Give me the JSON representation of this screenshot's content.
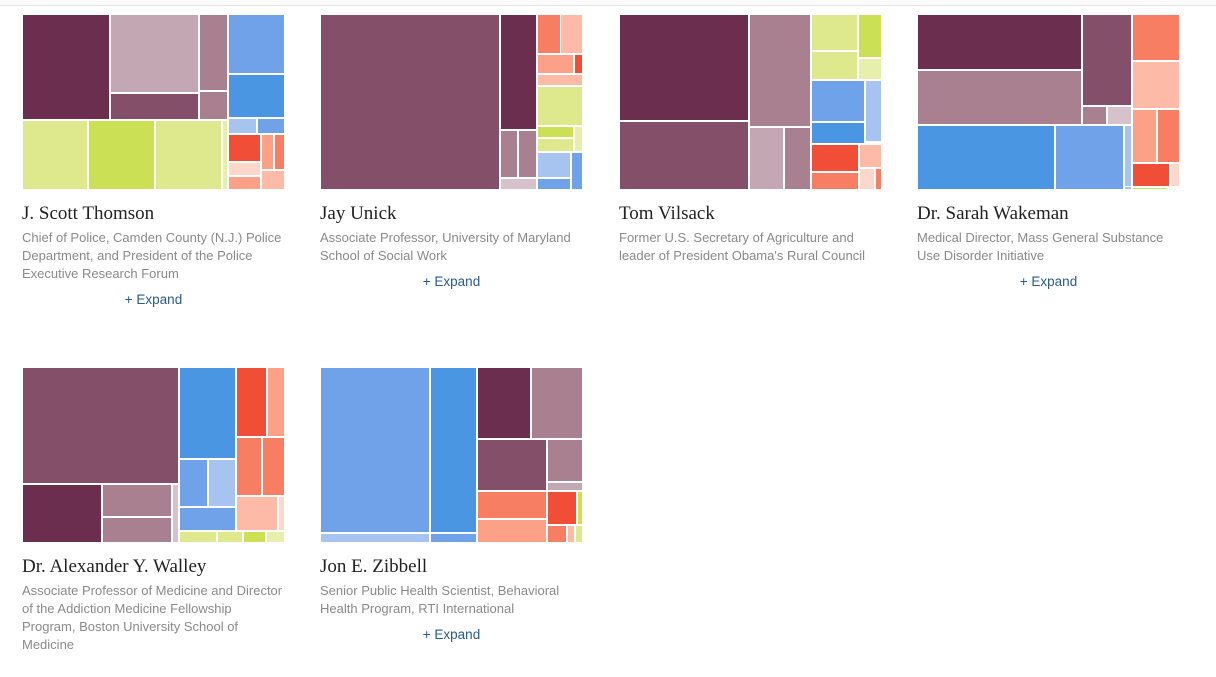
{
  "colors": {
    "plum": "#6b2e4e",
    "plum_mid": "#844f69",
    "mauve": "#a8808f",
    "mauve_light": "#c3a8b4",
    "mauve_pale": "#d6c2cb",
    "lime": "#cbe055",
    "lime_light": "#dde98c",
    "lime_pale": "#e7efac",
    "blue": "#4a96e2",
    "blue_mid": "#6fa2e8",
    "blue_light": "#a7c4f0",
    "red": "#f04e37",
    "coral": "#f77d63",
    "salmon": "#fca088",
    "salmon_light": "#fdbaa6",
    "salmon_pale": "#fed7cb"
  },
  "cards": [
    {
      "name": "J. Scott Thomson",
      "title": "Chief of Police, Camden County (N.J.) Police Department, and President of the Police Executive Research Forum",
      "expand": "+ Expand"
    },
    {
      "name": "Jay Unick",
      "title": "Associate Professor, University of Maryland School of Social Work",
      "expand": "+ Expand"
    },
    {
      "name": "Tom Vilsack",
      "title": "Former U.S. Secretary of Agriculture and leader of President Obama's Rural Council",
      "expand": ""
    },
    {
      "name": "Dr. Sarah Wakeman",
      "title": "Medical Director, Mass General Substance Use Disorder Initiative",
      "expand": "+ Expand"
    },
    {
      "name": "Dr. Alexander Y. Walley",
      "title": "Associate Professor of Medicine and Director of the Addiction Medicine Fellowship Program, Boston University School of Medicine",
      "expand": ""
    },
    {
      "name": "Jon E. Zibbell",
      "title": "Senior Public Health Scientist, Behavioral Health Program, RTI International",
      "expand": "+ Expand"
    }
  ]
}
